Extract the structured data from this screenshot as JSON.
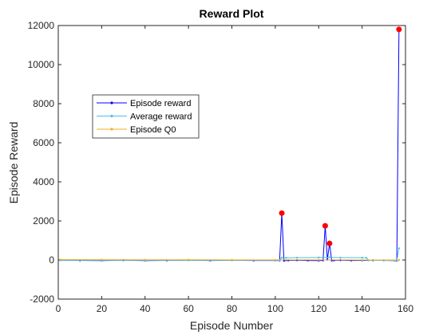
{
  "chart_data": {
    "type": "line",
    "title": "Reward Plot",
    "xlabel": "Episode Number",
    "ylabel": "Episode Reward",
    "xlim": [
      0,
      160
    ],
    "ylim": [
      -2000,
      12000
    ],
    "xticks": [
      0,
      20,
      40,
      60,
      80,
      100,
      120,
      140,
      160
    ],
    "yticks": [
      -2000,
      0,
      2000,
      4000,
      6000,
      8000,
      10000,
      12000
    ],
    "grid": false,
    "legend_position": "upper-left",
    "series": [
      {
        "name": "Episode reward",
        "color": "#0000ff",
        "marker": "dot",
        "x": [
          1,
          10,
          20,
          30,
          40,
          50,
          60,
          70,
          80,
          90,
          100,
          102,
          103,
          104,
          106,
          110,
          115,
          120,
          122,
          123,
          124,
          125,
          126,
          127,
          130,
          135,
          140,
          145,
          150,
          155,
          156,
          157
        ],
        "y": [
          -10,
          -20,
          -30,
          -10,
          -30,
          -20,
          -10,
          -25,
          -15,
          -25,
          -20,
          -30,
          2400,
          -40,
          -20,
          -10,
          -25,
          -30,
          -20,
          1750,
          20,
          850,
          -30,
          -20,
          -10,
          -25,
          -20,
          -15,
          -20,
          -30,
          -40,
          11800
        ]
      },
      {
        "name": "Average reward",
        "color": "#4dbeee",
        "marker": "dot",
        "x": [
          1,
          20,
          40,
          60,
          80,
          100,
          102,
          103,
          105,
          110,
          120,
          125,
          130,
          140,
          142,
          143,
          150,
          155,
          156,
          157
        ],
        "y": [
          -15,
          -15,
          -15,
          -15,
          -15,
          -15,
          -15,
          120,
          110,
          120,
          130,
          140,
          120,
          120,
          110,
          -20,
          -20,
          -25,
          -25,
          600
        ]
      },
      {
        "name": "Episode Q0",
        "color": "#edb120",
        "marker": "dot",
        "x": [
          1,
          20,
          40,
          60,
          80,
          100,
          120,
          140,
          157
        ],
        "y": [
          20,
          15,
          10,
          10,
          5,
          5,
          5,
          0,
          0
        ]
      }
    ],
    "highlight_markers": {
      "color": "#ff0000",
      "points": [
        {
          "x": 103,
          "y": 2400
        },
        {
          "x": 123,
          "y": 1750
        },
        {
          "x": 125,
          "y": 850
        },
        {
          "x": 157,
          "y": 11800
        }
      ]
    }
  }
}
